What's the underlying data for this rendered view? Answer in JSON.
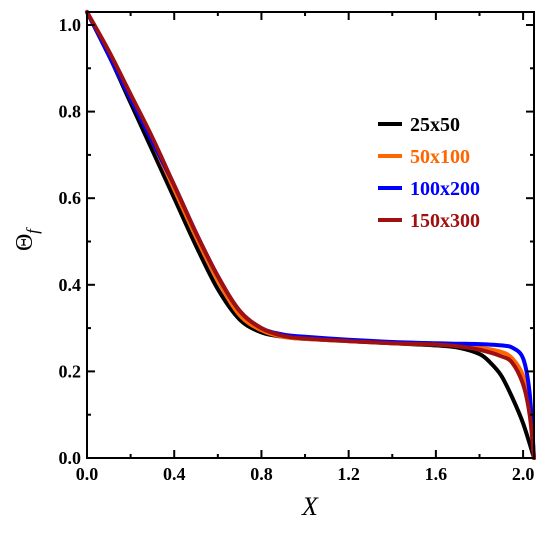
{
  "chart_data": {
    "type": "line",
    "xlabel": "X",
    "ylabel_symbol": "Θ",
    "ylabel_subscript": "f",
    "xlim": [
      0.0,
      2.05
    ],
    "ylim": [
      0.0,
      1.03
    ],
    "x_ticks": [
      0.0,
      0.4,
      0.8,
      1.2,
      1.6,
      2.0
    ],
    "x_tick_labels": [
      "0.0",
      "0.4",
      "0.8",
      "1.2",
      "1.6",
      "2.0"
    ],
    "y_ticks": [
      0.0,
      0.2,
      0.4,
      0.6,
      0.8,
      1.0
    ],
    "y_tick_labels": [
      "0.0",
      "0.2",
      "0.4",
      "0.6",
      "0.8",
      "1.0"
    ],
    "grid": false,
    "legend_position": "upper-right",
    "series": [
      {
        "name": "25x50",
        "color": "#000000",
        "x": [
          0.0,
          0.1,
          0.2,
          0.3,
          0.4,
          0.5,
          0.6,
          0.7,
          0.8,
          0.9,
          1.0,
          1.2,
          1.4,
          1.6,
          1.7,
          1.8,
          1.85,
          1.9,
          1.95,
          2.0,
          2.05
        ],
        "y": [
          1.03,
          0.93,
          0.82,
          0.71,
          0.6,
          0.49,
          0.39,
          0.32,
          0.29,
          0.28,
          0.275,
          0.27,
          0.265,
          0.26,
          0.255,
          0.24,
          0.22,
          0.19,
          0.14,
          0.08,
          0.0
        ]
      },
      {
        "name": "50x100",
        "color": "#ff6600",
        "x": [
          0.0,
          0.1,
          0.2,
          0.3,
          0.4,
          0.5,
          0.6,
          0.7,
          0.8,
          0.9,
          1.0,
          1.2,
          1.4,
          1.6,
          1.7,
          1.8,
          1.9,
          1.95,
          2.0,
          2.03,
          2.05
        ],
        "y": [
          1.03,
          0.93,
          0.83,
          0.73,
          0.62,
          0.51,
          0.41,
          0.33,
          0.295,
          0.28,
          0.275,
          0.27,
          0.265,
          0.262,
          0.26,
          0.255,
          0.245,
          0.23,
          0.19,
          0.12,
          0.0
        ]
      },
      {
        "name": "100x200",
        "color": "#0000ff",
        "x": [
          0.0,
          0.1,
          0.2,
          0.3,
          0.4,
          0.5,
          0.6,
          0.7,
          0.8,
          0.9,
          1.0,
          1.2,
          1.4,
          1.6,
          1.7,
          1.8,
          1.9,
          1.95,
          2.0,
          2.03,
          2.05
        ],
        "y": [
          1.03,
          0.93,
          0.83,
          0.73,
          0.63,
          0.52,
          0.42,
          0.34,
          0.3,
          0.285,
          0.28,
          0.273,
          0.268,
          0.265,
          0.264,
          0.263,
          0.26,
          0.255,
          0.23,
          0.15,
          0.0
        ]
      },
      {
        "name": "150x300",
        "color": "#a01010",
        "x": [
          0.0,
          0.1,
          0.2,
          0.3,
          0.4,
          0.5,
          0.6,
          0.7,
          0.8,
          0.9,
          1.0,
          1.2,
          1.4,
          1.6,
          1.7,
          1.8,
          1.9,
          1.95,
          2.0,
          2.03,
          2.05
        ],
        "y": [
          1.03,
          0.94,
          0.84,
          0.74,
          0.63,
          0.52,
          0.42,
          0.34,
          0.3,
          0.282,
          0.276,
          0.27,
          0.265,
          0.262,
          0.258,
          0.25,
          0.235,
          0.22,
          0.17,
          0.1,
          0.0
        ]
      }
    ]
  }
}
